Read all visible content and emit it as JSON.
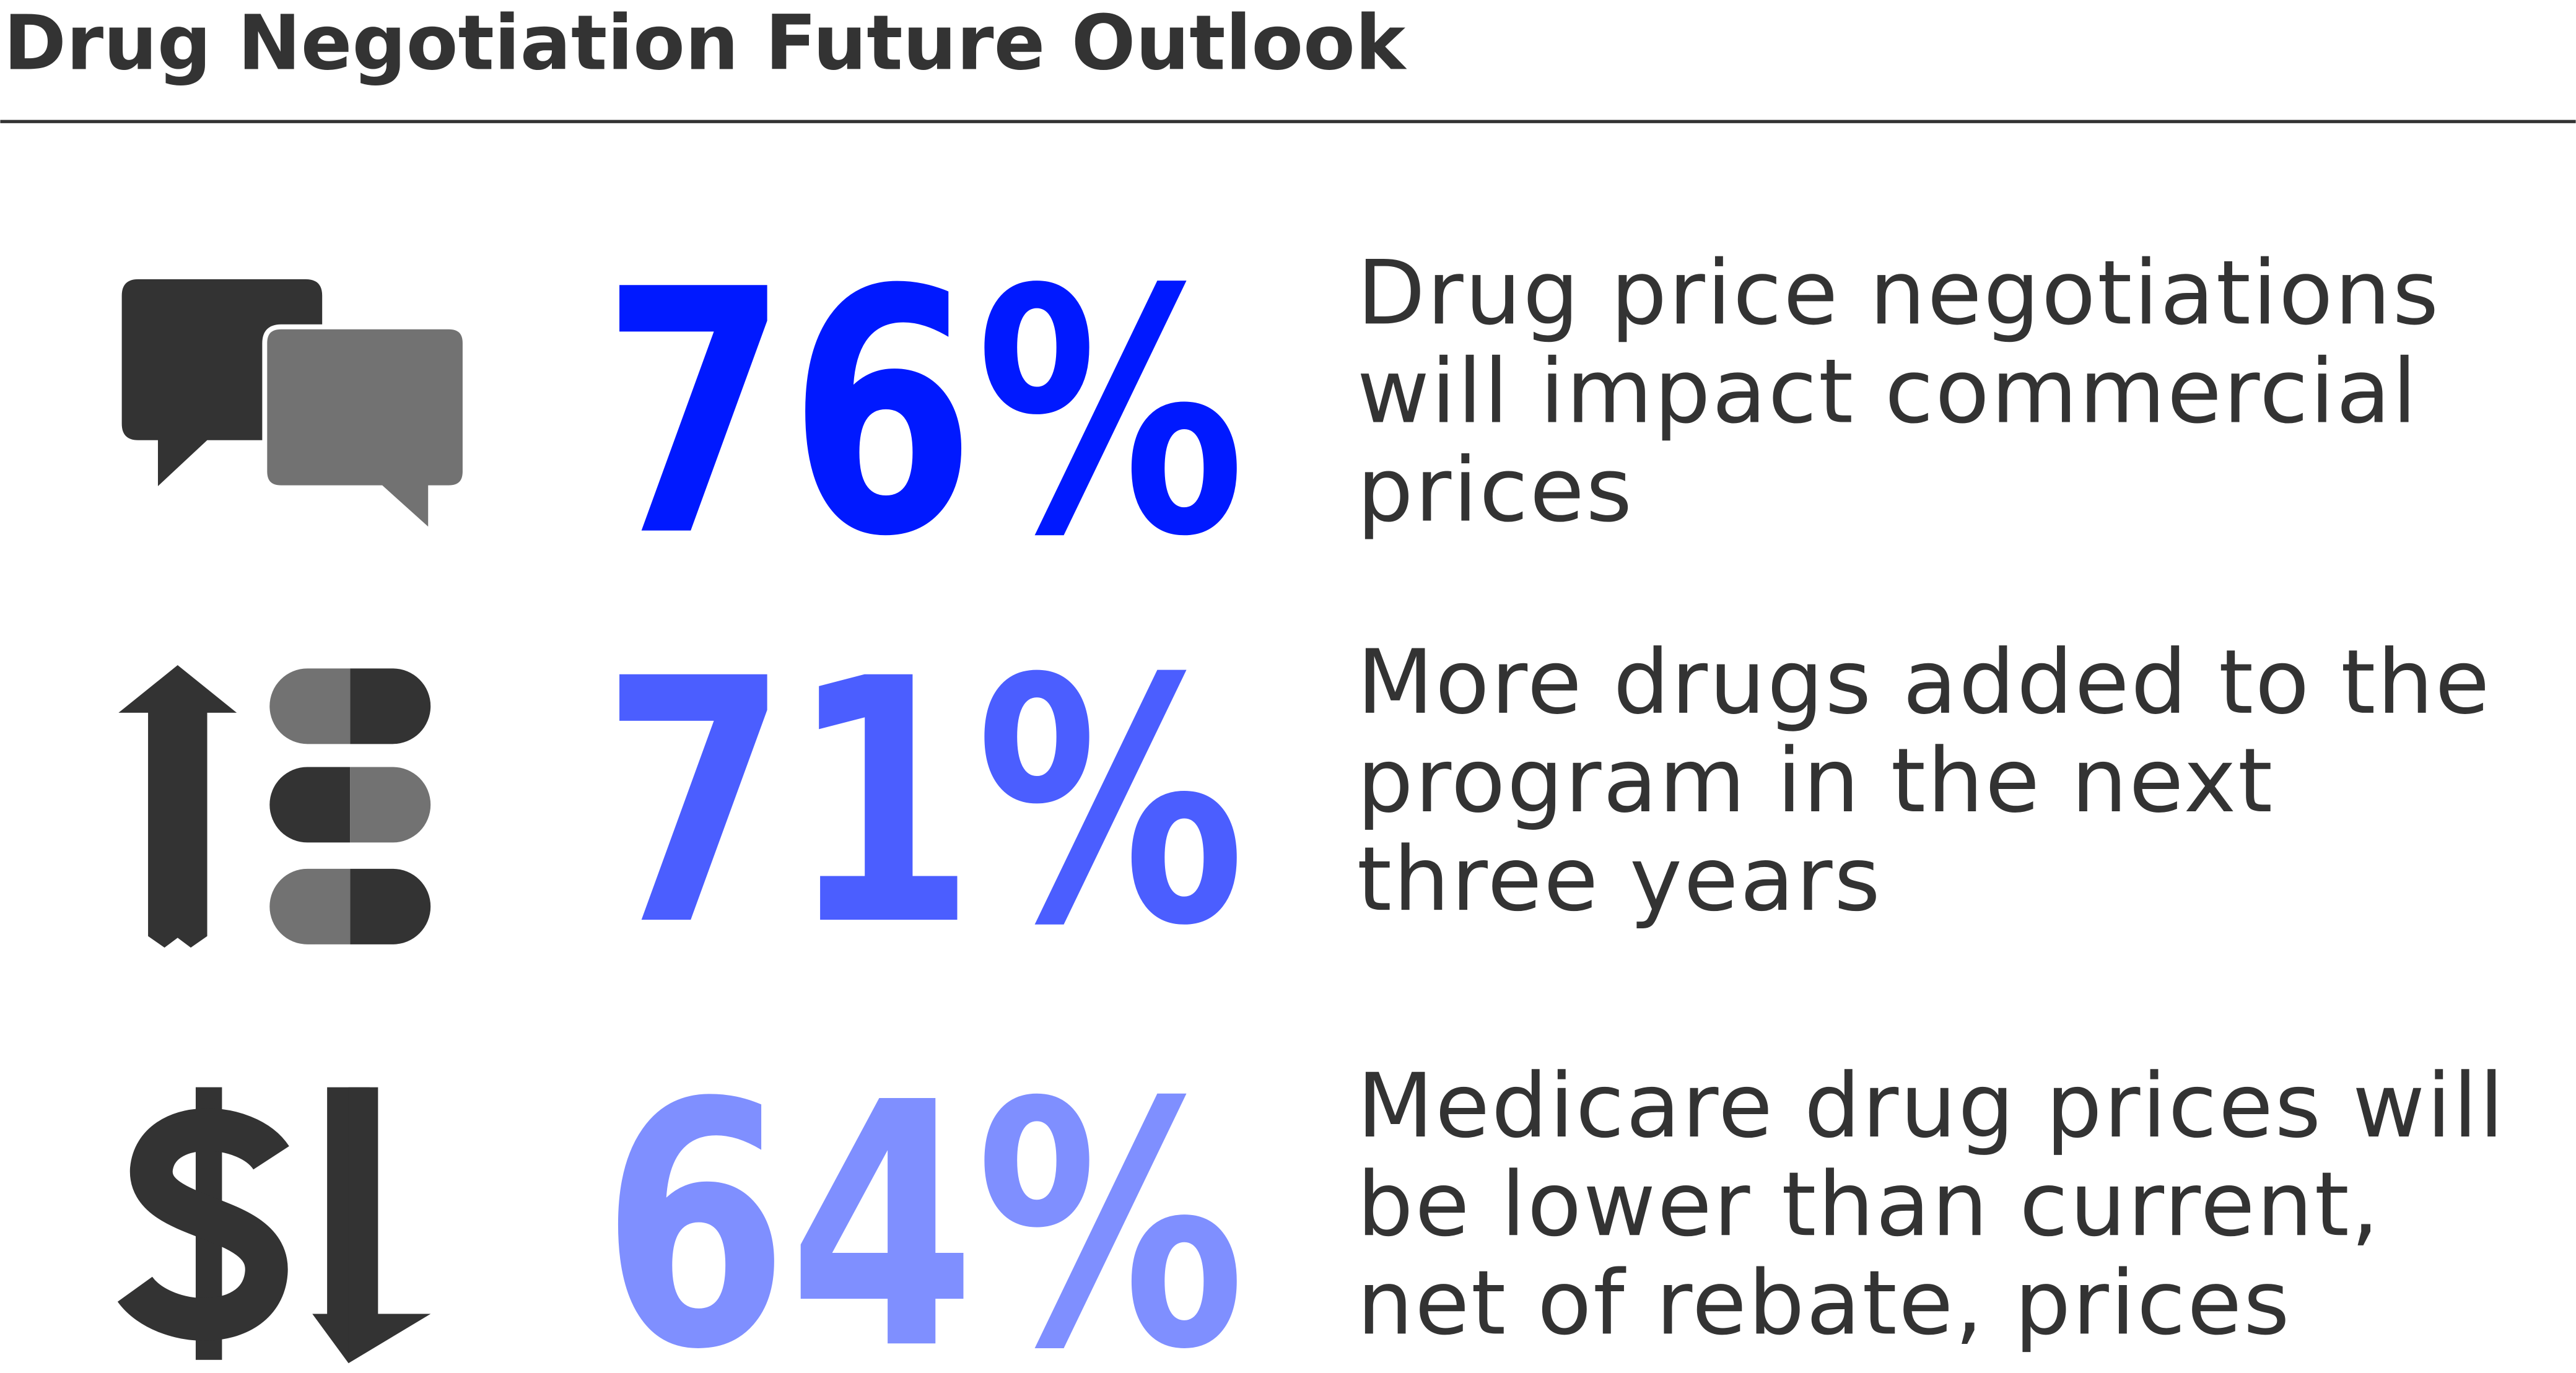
{
  "header": {
    "title": "Drug Negotiation Future Outlook"
  },
  "items": [
    {
      "stat": "76%",
      "color": "#0019ff",
      "lines": [
        "Drug price negotiations",
        "will impact commercial",
        "prices"
      ]
    },
    {
      "stat": "71%",
      "color": "#4b5eff",
      "lines": [
        "More drugs added to the",
        "program in the next",
        "three years"
      ]
    },
    {
      "stat": "64%",
      "color": "#7f8fff",
      "lines": [
        "Medicare drug prices will",
        "be lower than current,",
        "net of rebate, prices"
      ]
    }
  ]
}
